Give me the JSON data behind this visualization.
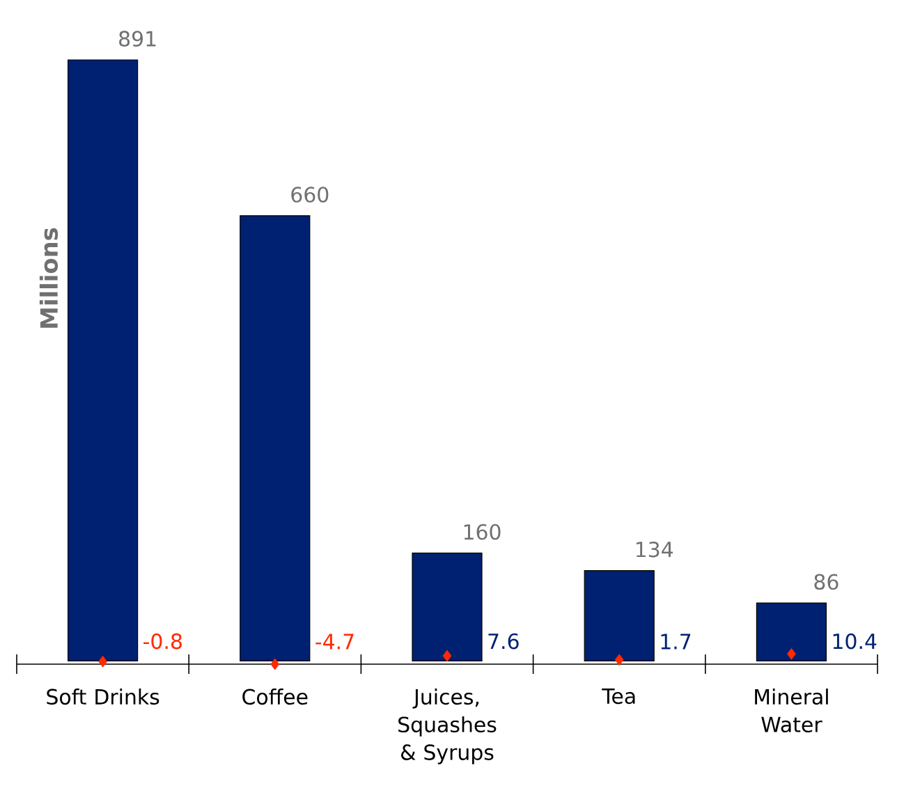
{
  "chart_data": {
    "type": "bar",
    "ylabel": "Millions",
    "categories": [
      "Soft Drinks",
      "Coffee",
      "Juices, Squashes & Syrups",
      "Tea",
      "Mineral Water"
    ],
    "series": [
      {
        "color": "#002171",
        "values": [
          891,
          660,
          160,
          134,
          86
        ]
      },
      {
        "type": "scatter",
        "color": "#ff2a00",
        "marker": "diamond",
        "values": [
          -0.8,
          -4.7,
          7.6,
          1.7,
          10.4
        ]
      }
    ],
    "tick_labels": "x",
    "data_labels": true
  }
}
